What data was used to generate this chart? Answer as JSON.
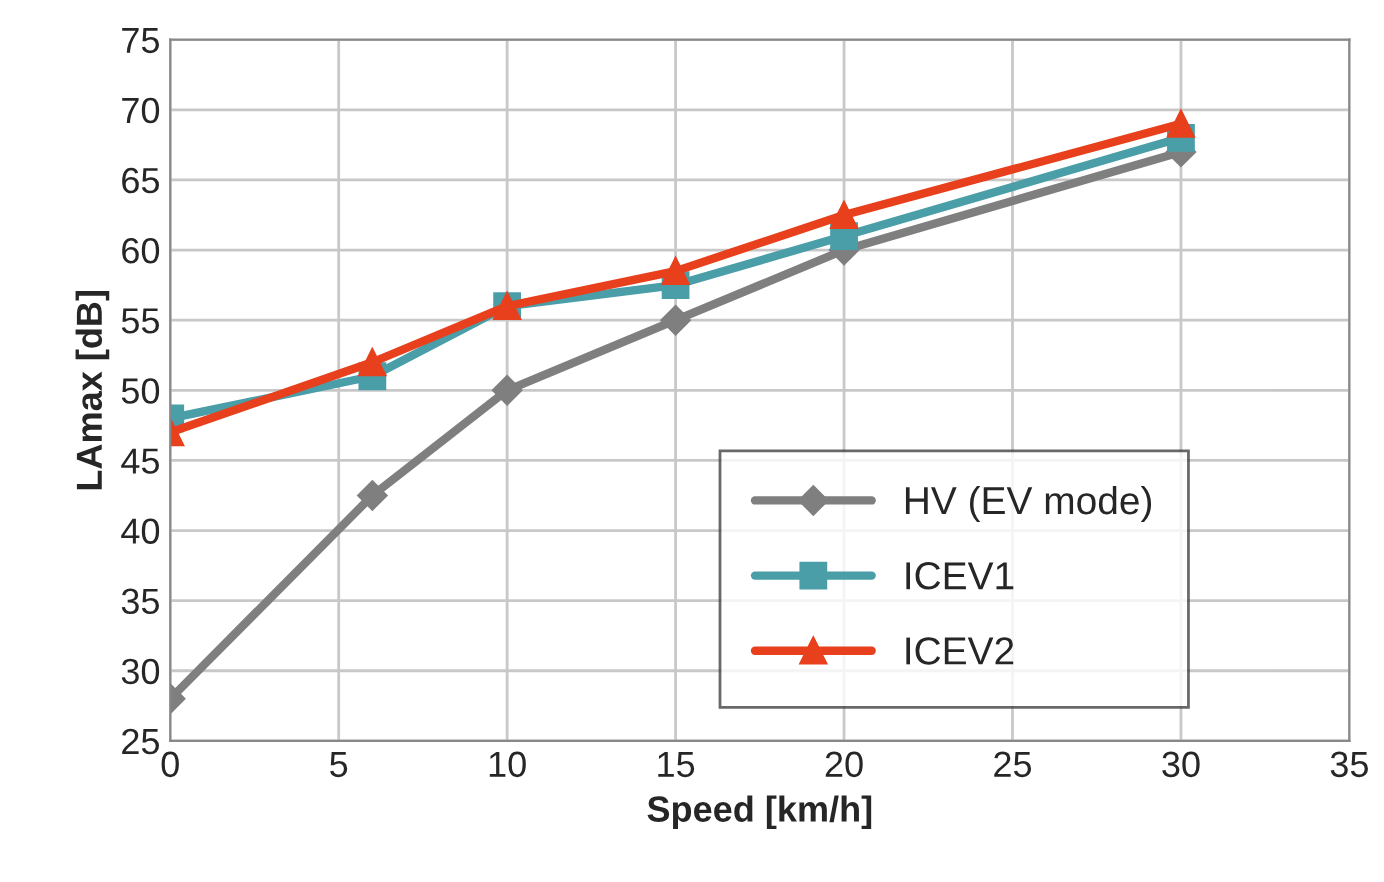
{
  "chart_data": {
    "type": "line",
    "xlabel": "Speed [km/h]",
    "ylabel": "LAmax [dB]",
    "x": [
      0,
      6,
      10,
      15,
      20,
      30
    ],
    "series": [
      {
        "name": "HV (EV mode)",
        "color": "#7f7f7f",
        "marker": "diamond",
        "values": [
          28,
          42.5,
          50,
          55,
          60,
          67
        ]
      },
      {
        "name": "ICEV1",
        "color": "#4a9ea8",
        "marker": "square",
        "values": [
          48,
          51,
          56,
          57.5,
          61,
          68
        ]
      },
      {
        "name": "ICEV2",
        "color": "#e8401c",
        "marker": "triangle",
        "values": [
          47,
          52,
          56,
          58.5,
          62.5,
          69
        ]
      }
    ],
    "xlim": [
      0,
      35
    ],
    "xticks": [
      0,
      5,
      10,
      15,
      20,
      25,
      30,
      35
    ],
    "ylim": [
      25,
      75
    ],
    "yticks": [
      25,
      30,
      35,
      40,
      45,
      50,
      55,
      60,
      65,
      70,
      75
    ],
    "grid": true,
    "legend": "bottom right",
    "line_style": "solid"
  }
}
